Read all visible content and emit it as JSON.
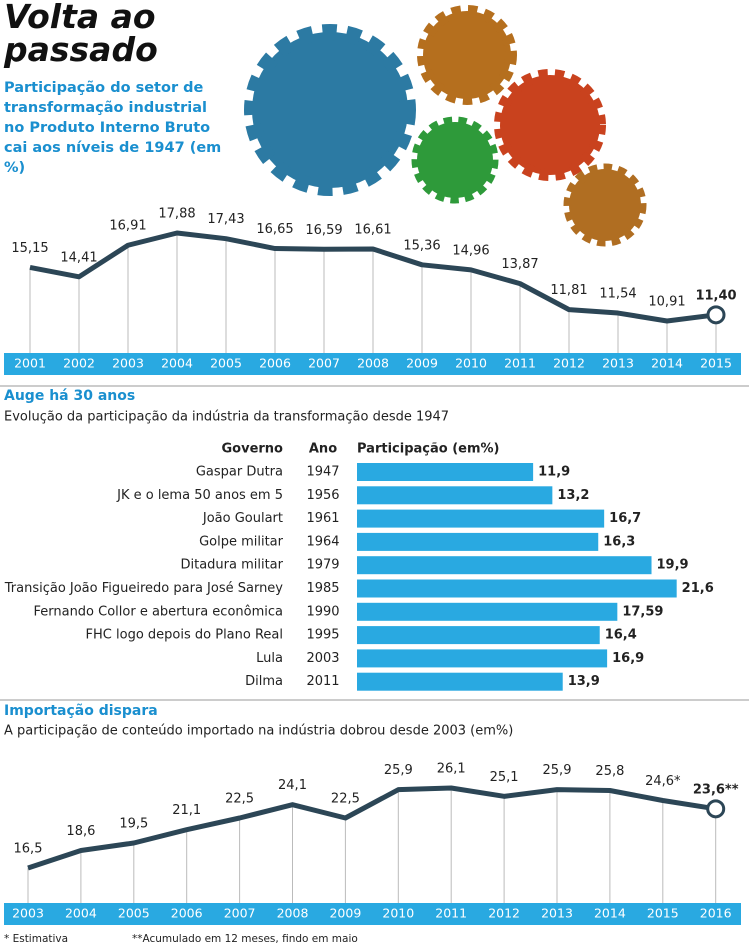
{
  "chart_data": [
    {
      "type": "line",
      "title": "Volta ao passado",
      "subtitle": "Participação do setor de transformação industrial no Produto Interno Bruto cai aos níveis de 1947 (em %)",
      "color": "#2c4656",
      "categories": [
        "2001",
        "2002",
        "2003",
        "2004",
        "2005",
        "2006",
        "2007",
        "2008",
        "2009",
        "2010",
        "2011",
        "2012",
        "2013",
        "2014",
        "2015"
      ],
      "values": [
        15.15,
        14.41,
        16.91,
        17.88,
        17.43,
        16.65,
        16.59,
        16.61,
        15.36,
        14.96,
        13.87,
        11.81,
        11.54,
        10.91,
        11.4
      ],
      "value_labels": [
        "15,15",
        "14,41",
        "16,91",
        "17,88",
        "17,43",
        "16,65",
        "16,59",
        "16,61",
        "15,36",
        "14,96",
        "13,87",
        "11,81",
        "11,54",
        "10,91",
        "11,40"
      ]
    },
    {
      "type": "bar",
      "title": "Auge há 30 anos",
      "subtitle": "Evolução da participação da indústria da transformação desde 1947",
      "color": "#29a9e1",
      "column_headers": [
        "Governo",
        "Ano",
        "Participação (em%)"
      ],
      "categories": [
        "Gaspar Dutra",
        "JK e o lema 50 anos em 5",
        "João Goulart",
        "Golpe militar",
        "Ditadura militar",
        "Transição João Figueiredo para José Sarney",
        "Fernando Collor e abertura econômica",
        "FHC logo depois do Plano Real",
        "Lula",
        "Dilma"
      ],
      "years": [
        "1947",
        "1956",
        "1961",
        "1964",
        "1979",
        "1985",
        "1990",
        "1995",
        "2003",
        "2011"
      ],
      "values": [
        11.9,
        13.2,
        16.7,
        16.3,
        19.9,
        21.6,
        17.59,
        16.4,
        16.9,
        13.9
      ],
      "value_labels": [
        "11,9",
        "13,2",
        "16,7",
        "16,3",
        "19,9",
        "21,6",
        "17,59",
        "16,4",
        "16,9",
        "13,9"
      ]
    },
    {
      "type": "line",
      "title": "Importação dispara",
      "subtitle": "A participação de conteúdo importado na indústria dobrou desde 2003 (em%)",
      "color": "#2c4656",
      "categories": [
        "2003",
        "2004",
        "2005",
        "2006",
        "2007",
        "2008",
        "2009",
        "2010",
        "2011",
        "2012",
        "2013",
        "2014",
        "2015",
        "2016"
      ],
      "values": [
        16.5,
        18.6,
        19.5,
        21.1,
        22.5,
        24.1,
        22.5,
        25.9,
        26.1,
        25.1,
        25.9,
        25.8,
        24.6,
        23.6
      ],
      "value_labels": [
        "16,5",
        "18,6",
        "19,5",
        "21,1",
        "22,5",
        "24,1",
        "22,5",
        "25,9",
        "26,1",
        "25,1",
        "25,9",
        "25,8",
        "24,6*",
        "23,6**"
      ],
      "footnotes": [
        "* Estimativa",
        "**Acumulado em 12 meses, findo em maio"
      ]
    }
  ]
}
